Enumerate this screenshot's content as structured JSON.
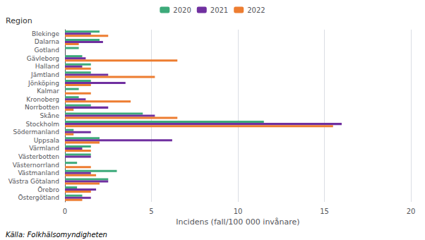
{
  "chart_data": {
    "type": "bar",
    "orientation": "horizontal",
    "xlabel": "Incidens (fall/100 000 invånare)",
    "ylabel": "Region",
    "annotations": [
      "Källa: Folkhälsomyndigheten"
    ],
    "categories": [
      "Blekinge",
      "Dalarna",
      "Gotland",
      "Gävleborg",
      "Halland",
      "Jämtland",
      "Jönköping",
      "Kalmar",
      "Kronoberg",
      "Norrbotten",
      "Skåne",
      "Stockholm",
      "Södermanland",
      "Uppsala",
      "Värmland",
      "Västerbotten",
      "Västernorrland",
      "Västmanland",
      "Västra Götaland",
      "Örebro",
      "Östergötland"
    ],
    "series": [
      {
        "name": "2020",
        "color": "#3DAA7A",
        "values": [
          2.0,
          2.0,
          0.8,
          1.0,
          1.5,
          1.5,
          1.5,
          0.8,
          0.8,
          1.5,
          4.5,
          11.5,
          0.5,
          2.0,
          1.5,
          1.5,
          0.7,
          3.0,
          2.5,
          0.7,
          1.0
        ]
      },
      {
        "name": "2021",
        "color": "#7030A0",
        "values": [
          1.5,
          2.2,
          0.0,
          1.2,
          1.0,
          2.5,
          3.5,
          0.0,
          1.2,
          2.5,
          5.2,
          16.0,
          1.5,
          6.2,
          1.0,
          1.5,
          0.0,
          1.5,
          2.5,
          1.8,
          1.5
        ]
      },
      {
        "name": "2022",
        "color": "#ED7D31",
        "values": [
          2.5,
          0.8,
          0.0,
          6.5,
          1.5,
          5.2,
          1.5,
          1.5,
          3.8,
          0.5,
          6.5,
          15.5,
          0.5,
          2.0,
          1.5,
          0.0,
          1.5,
          1.8,
          2.0,
          1.5,
          1.0
        ]
      }
    ],
    "xlim": [
      0,
      20
    ],
    "xticks": [
      0,
      5,
      10,
      15,
      20
    ],
    "grid": true,
    "legend": "top"
  }
}
